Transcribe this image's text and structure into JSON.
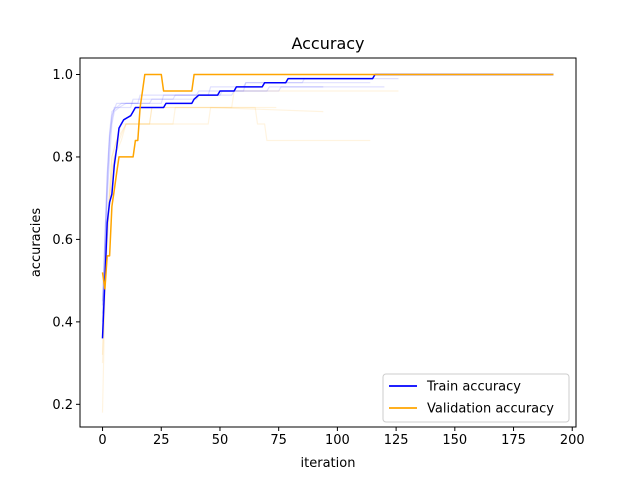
{
  "chart_data": {
    "type": "line",
    "title": "Accuracy",
    "xlabel": "iteration",
    "ylabel": "accuracies",
    "xlim": [
      -9.6,
      201.6
    ],
    "ylim": [
      0.145,
      1.04
    ],
    "xticks": [
      0,
      25,
      50,
      75,
      100,
      125,
      150,
      175,
      200
    ],
    "yticks": [
      0.2,
      0.4,
      0.6,
      0.8,
      1.0
    ],
    "xtick_labels": [
      "0",
      "25",
      "50",
      "75",
      "100",
      "125",
      "150",
      "175",
      "200"
    ],
    "ytick_labels": [
      "0.2",
      "0.4",
      "0.6",
      "0.8",
      "1.0"
    ],
    "grid": false,
    "legend_position": "lower-right",
    "colors": {
      "train": "#0000ff",
      "validation": "#ffa500"
    },
    "series": [
      {
        "name": "Train accuracy",
        "color": "#0000ff",
        "points": [
          [
            0,
            0.36
          ],
          [
            1,
            0.5
          ],
          [
            2,
            0.64
          ],
          [
            3,
            0.69
          ],
          [
            4,
            0.71
          ],
          [
            5,
            0.78
          ],
          [
            6,
            0.82
          ],
          [
            7,
            0.87
          ],
          [
            8,
            0.88
          ],
          [
            9,
            0.89
          ],
          [
            12,
            0.9
          ],
          [
            13,
            0.91
          ],
          [
            14,
            0.92
          ],
          [
            16,
            0.92
          ],
          [
            26,
            0.92
          ],
          [
            27,
            0.93
          ],
          [
            38,
            0.93
          ],
          [
            39,
            0.94
          ],
          [
            41,
            0.95
          ],
          [
            49,
            0.95
          ],
          [
            50,
            0.96
          ],
          [
            56,
            0.96
          ],
          [
            57,
            0.97
          ],
          [
            68,
            0.97
          ],
          [
            69,
            0.98
          ],
          [
            78,
            0.98
          ],
          [
            79,
            0.99
          ],
          [
            115,
            0.99
          ],
          [
            116,
            1.0
          ],
          [
            192,
            1.0
          ]
        ]
      },
      {
        "name": "Validation accuracy",
        "color": "#ffa500",
        "points": [
          [
            0,
            0.52
          ],
          [
            1,
            0.48
          ],
          [
            2,
            0.56
          ],
          [
            3,
            0.56
          ],
          [
            4,
            0.68
          ],
          [
            5,
            0.72
          ],
          [
            6,
            0.76
          ],
          [
            7,
            0.8
          ],
          [
            13,
            0.8
          ],
          [
            14,
            0.84
          ],
          [
            15,
            0.84
          ],
          [
            16,
            0.92
          ],
          [
            17,
            0.96
          ],
          [
            18,
            1.0
          ],
          [
            25,
            1.0
          ],
          [
            26,
            0.96
          ],
          [
            38,
            0.96
          ],
          [
            39,
            1.0
          ],
          [
            192,
            1.0
          ]
        ]
      },
      {
        "color": "#0000ff",
        "opacity": 0.12,
        "points": [
          [
            0,
            0.42
          ],
          [
            1,
            0.55
          ],
          [
            2,
            0.7
          ],
          [
            3,
            0.8
          ],
          [
            4,
            0.88
          ],
          [
            5,
            0.91
          ],
          [
            7,
            0.92
          ],
          [
            10,
            0.93
          ],
          [
            20,
            0.93
          ],
          [
            21,
            0.94
          ],
          [
            40,
            0.94
          ],
          [
            41,
            0.95
          ],
          [
            55,
            0.95
          ],
          [
            56,
            0.96
          ],
          [
            75,
            0.96
          ],
          [
            76,
            0.97
          ],
          [
            120,
            0.97
          ]
        ]
      },
      {
        "color": "#0000ff",
        "opacity": 0.12,
        "points": [
          [
            0,
            0.45
          ],
          [
            1,
            0.6
          ],
          [
            2,
            0.75
          ],
          [
            3,
            0.85
          ],
          [
            4,
            0.9
          ],
          [
            6,
            0.93
          ],
          [
            15,
            0.93
          ],
          [
            16,
            0.95
          ],
          [
            45,
            0.95
          ],
          [
            46,
            0.97
          ],
          [
            60,
            0.97
          ],
          [
            61,
            0.98
          ],
          [
            85,
            0.98
          ],
          [
            86,
            0.99
          ],
          [
            126,
            0.99
          ]
        ]
      },
      {
        "color": "#0000ff",
        "opacity": 0.12,
        "points": [
          [
            0,
            0.4
          ],
          [
            1,
            0.58
          ],
          [
            2,
            0.72
          ],
          [
            3,
            0.84
          ],
          [
            4,
            0.89
          ],
          [
            5,
            0.92
          ],
          [
            12,
            0.92
          ],
          [
            13,
            0.94
          ],
          [
            30,
            0.94
          ],
          [
            31,
            0.95
          ],
          [
            50,
            0.95
          ],
          [
            51,
            0.96
          ],
          [
            70,
            0.96
          ],
          [
            71,
            0.97
          ],
          [
            94,
            0.97
          ]
        ]
      },
      {
        "color": "#0000ff",
        "opacity": 0.12,
        "points": [
          [
            0,
            0.44
          ],
          [
            1,
            0.6
          ],
          [
            2,
            0.76
          ],
          [
            3,
            0.86
          ],
          [
            4,
            0.91
          ],
          [
            8,
            0.93
          ],
          [
            25,
            0.93
          ],
          [
            26,
            0.95
          ],
          [
            40,
            0.95
          ],
          [
            41,
            0.96
          ],
          [
            60,
            0.96
          ],
          [
            61,
            0.98
          ],
          [
            114,
            0.98
          ]
        ]
      },
      {
        "color": "#ffa500",
        "opacity": 0.12,
        "points": [
          [
            0,
            0.18
          ],
          [
            1,
            0.45
          ],
          [
            2,
            0.6
          ],
          [
            3,
            0.72
          ],
          [
            4,
            0.8
          ],
          [
            6,
            0.84
          ],
          [
            8,
            0.88
          ],
          [
            20,
            0.88
          ],
          [
            21,
            0.92
          ],
          [
            55,
            0.92
          ],
          [
            56,
            0.96
          ],
          [
            126,
            0.96
          ]
        ]
      },
      {
        "color": "#ffa500",
        "opacity": 0.12,
        "points": [
          [
            0,
            0.32
          ],
          [
            1,
            0.48
          ],
          [
            2,
            0.6
          ],
          [
            3,
            0.7
          ],
          [
            4,
            0.76
          ],
          [
            5,
            0.8
          ],
          [
            8,
            0.84
          ],
          [
            10,
            0.88
          ],
          [
            45,
            0.88
          ],
          [
            46,
            0.92
          ],
          [
            94,
            0.91
          ]
        ]
      },
      {
        "color": "#ffa500",
        "opacity": 0.12,
        "points": [
          [
            0,
            0.3
          ],
          [
            1,
            0.5
          ],
          [
            2,
            0.6
          ],
          [
            3,
            0.68
          ],
          [
            4,
            0.76
          ],
          [
            5,
            0.8
          ],
          [
            7,
            0.84
          ],
          [
            10,
            0.88
          ],
          [
            20,
            0.88
          ],
          [
            21,
            0.92
          ],
          [
            65,
            0.92
          ],
          [
            66,
            0.88
          ],
          [
            69,
            0.88
          ],
          [
            70,
            0.84
          ],
          [
            114,
            0.84
          ]
        ]
      },
      {
        "color": "#ffa500",
        "opacity": 0.12,
        "points": [
          [
            0,
            0.36
          ],
          [
            1,
            0.52
          ],
          [
            2,
            0.64
          ],
          [
            3,
            0.72
          ],
          [
            4,
            0.8
          ],
          [
            6,
            0.84
          ],
          [
            10,
            0.88
          ],
          [
            30,
            0.88
          ],
          [
            31,
            0.92
          ],
          [
            74,
            0.92
          ]
        ]
      }
    ]
  }
}
